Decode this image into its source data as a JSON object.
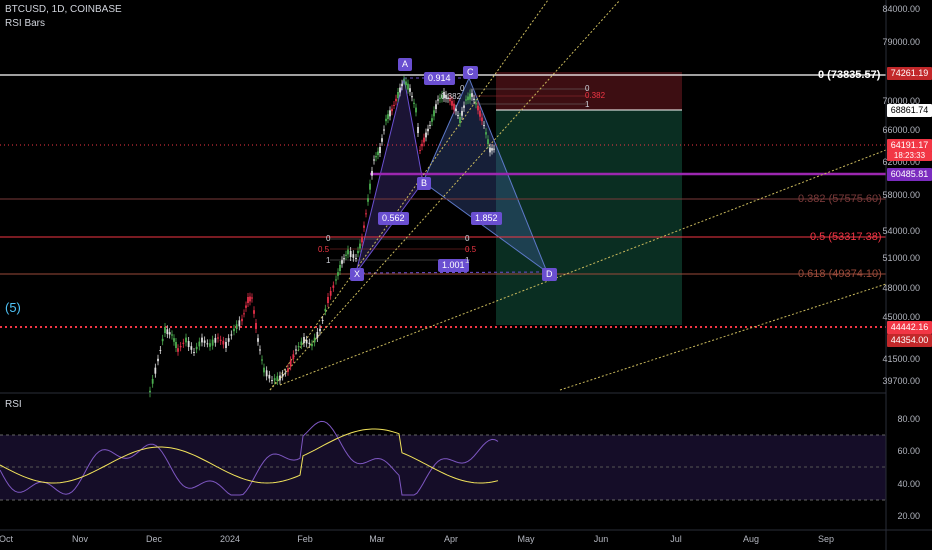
{
  "header": {
    "symbol": "BTCUSD, 1D, COINBASE",
    "indicator": "RSI Bars",
    "left_marker": "(5)"
  },
  "price_axis": {
    "labels": [
      "84000.00",
      "79000.00",
      "70000.00",
      "66000.00",
      "62000.00",
      "58000.00",
      "54000.00",
      "51000.00",
      "48000.00",
      "45000.00",
      "41500.00",
      "39700.00"
    ]
  },
  "price_boxes": [
    {
      "value": "74261.19",
      "bg": "#c2282a",
      "fg": "#ffffff"
    },
    {
      "value": "68861.74",
      "bg": "#ffffff",
      "fg": "#000000"
    },
    {
      "value": "64191.17",
      "bg": "#f23645",
      "fg": "#ffffff"
    },
    {
      "value": "18:23:33",
      "bg": "#f23645",
      "fg": "#ffffff"
    },
    {
      "value": "60485.81",
      "bg": "#7b2cbf",
      "fg": "#ffffff"
    },
    {
      "value": "44442.16",
      "bg": "#f23645",
      "fg": "#ffffff"
    },
    {
      "value": "44354.00",
      "bg": "#c2282a",
      "fg": "#ffffff"
    }
  ],
  "fib_levels": [
    {
      "label": "0 (73835.57)",
      "color": "#ffffff"
    },
    {
      "label": "0.382 (57575.60)",
      "color": "#7a3a3a"
    },
    {
      "label": "0.5 (53317.38)",
      "color": "#f23645"
    },
    {
      "label": "0.618 (49374.10)",
      "color": "#9a4a3a"
    }
  ],
  "pattern_points": [
    "X",
    "A",
    "B",
    "C",
    "D"
  ],
  "pattern_ratios": [
    "0.914",
    "0.562",
    "1.852",
    "1.001",
    "0.382"
  ],
  "small_fib": [
    "0",
    "0.5",
    "1",
    "0",
    "0.5",
    "1",
    "0",
    "0.382",
    "1",
    "0"
  ],
  "rsi": {
    "title": "RSI",
    "axis": [
      "80.00",
      "60.00",
      "40.00",
      "20.00"
    ]
  },
  "time_axis": [
    "Oct",
    "Nov",
    "Dec",
    "2024",
    "Feb",
    "Mar",
    "Apr",
    "May",
    "Jun",
    "Jul",
    "Aug",
    "Sep"
  ],
  "colors": {
    "background": "#000000",
    "pattern": "#6a4fd1",
    "fib_top": "#ffffff",
    "support": "#9c27b0",
    "stop_zone": "#5a1212",
    "target_zone": "#0b3a2a",
    "rsi_band": "#1a1030"
  }
}
